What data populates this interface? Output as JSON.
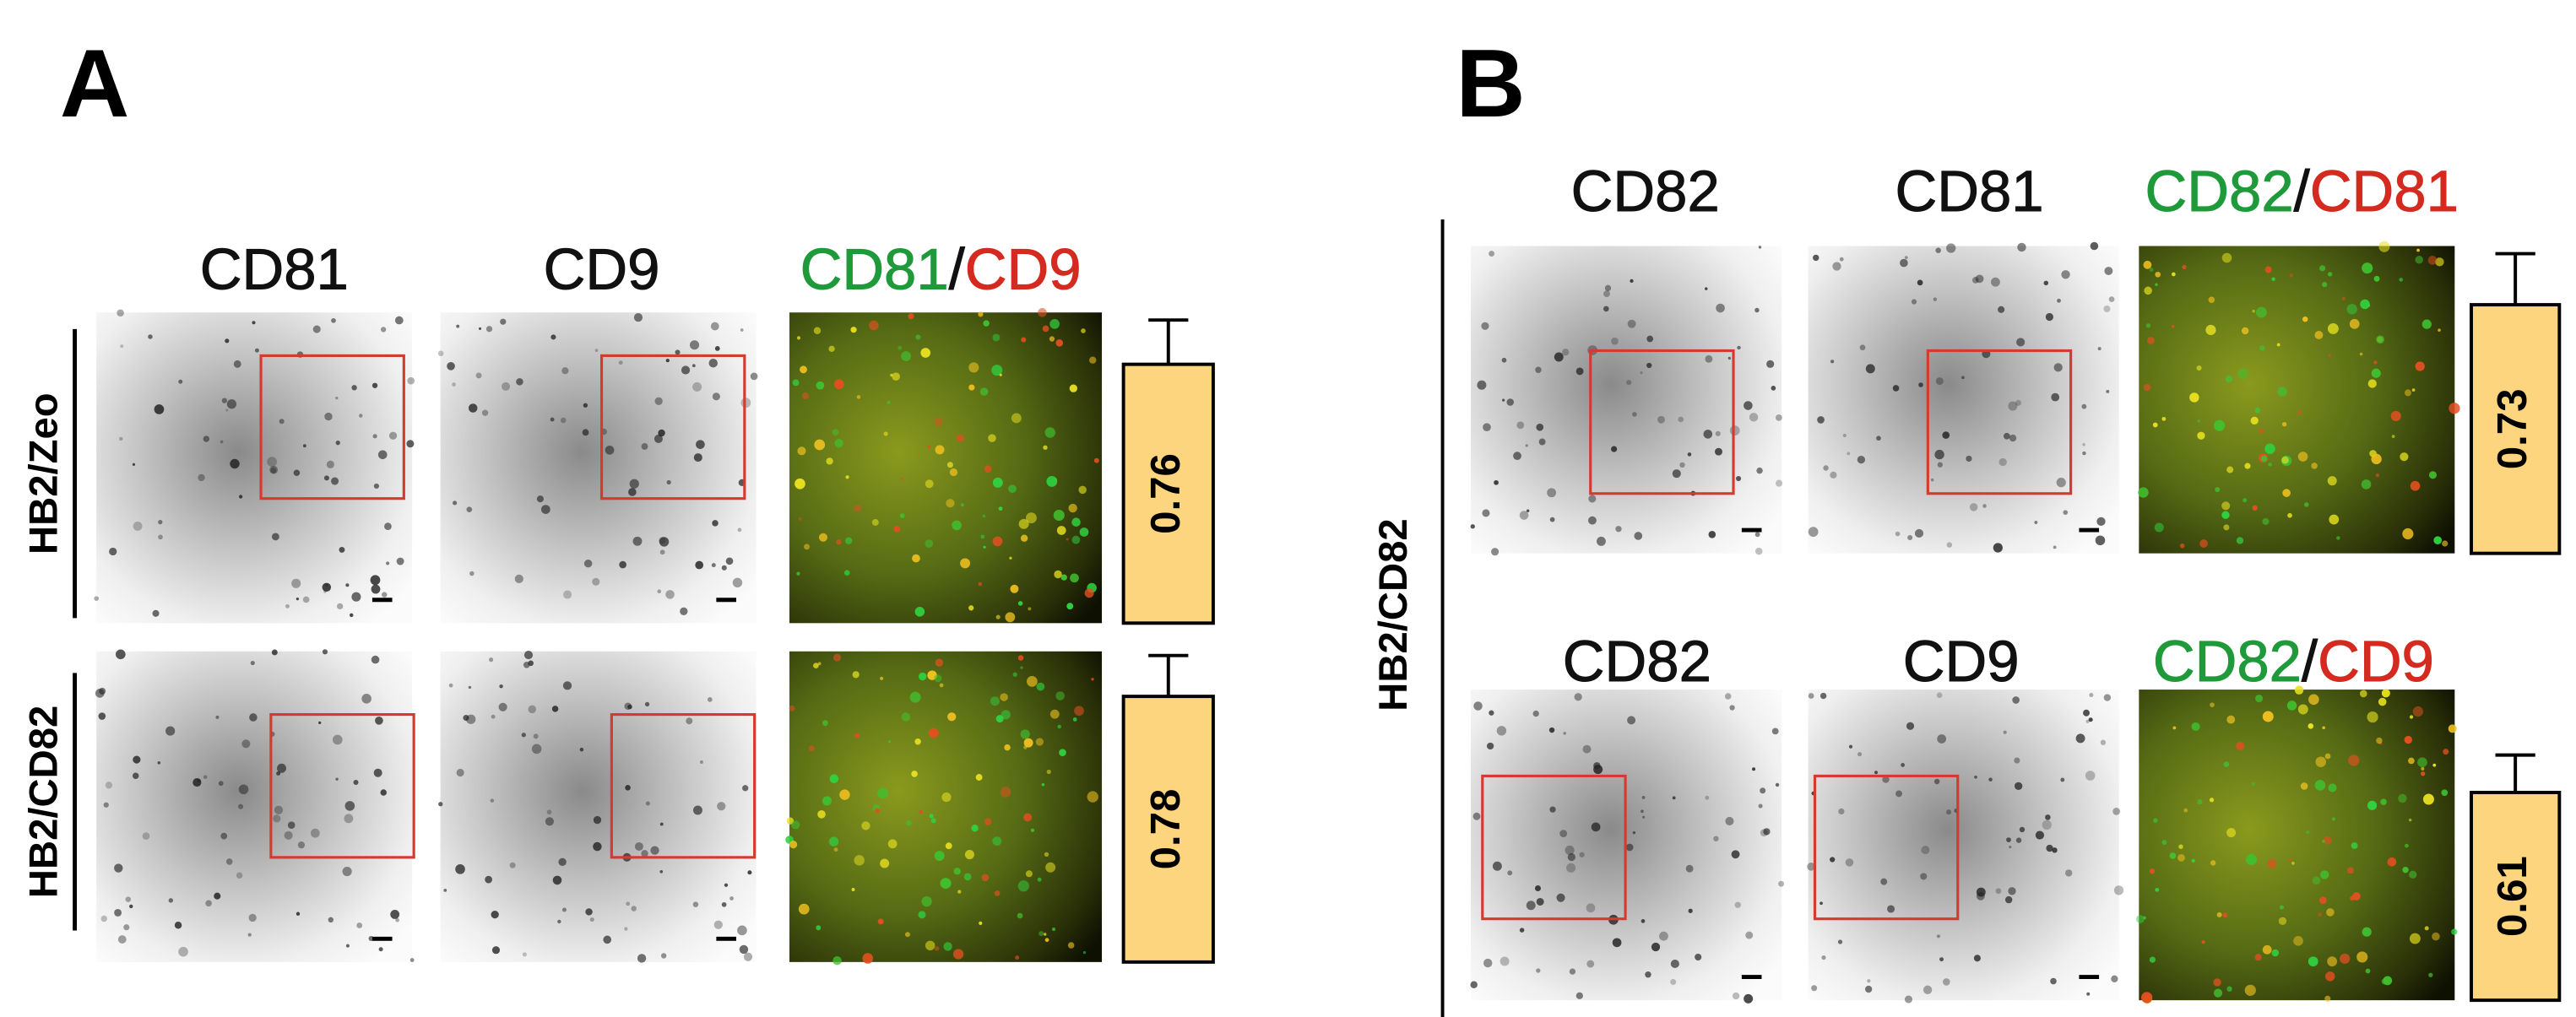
{
  "panels": [
    {
      "label": "A",
      "headers": [
        "CD81",
        "CD9"
      ],
      "merge": [
        "CD81",
        "/",
        "CD9"
      ],
      "rows": [
        {
          "name": "HB2/Zeo",
          "value": 0.76,
          "error": 0.13
        },
        {
          "name": "HB2/CD82",
          "value": 0.78,
          "error": 0.12
        }
      ]
    },
    {
      "label": "B",
      "group": "HB2/CD82",
      "rows": [
        {
          "headers": [
            "CD82",
            "CD81"
          ],
          "merge": [
            "CD82",
            "/",
            "CD81"
          ],
          "value": 0.73,
          "error": 0.15
        },
        {
          "headers": [
            "CD82",
            "CD9"
          ],
          "merge": [
            "CD82",
            "/",
            "CD9"
          ],
          "value": 0.61,
          "error": 0.11
        }
      ]
    }
  ]
}
